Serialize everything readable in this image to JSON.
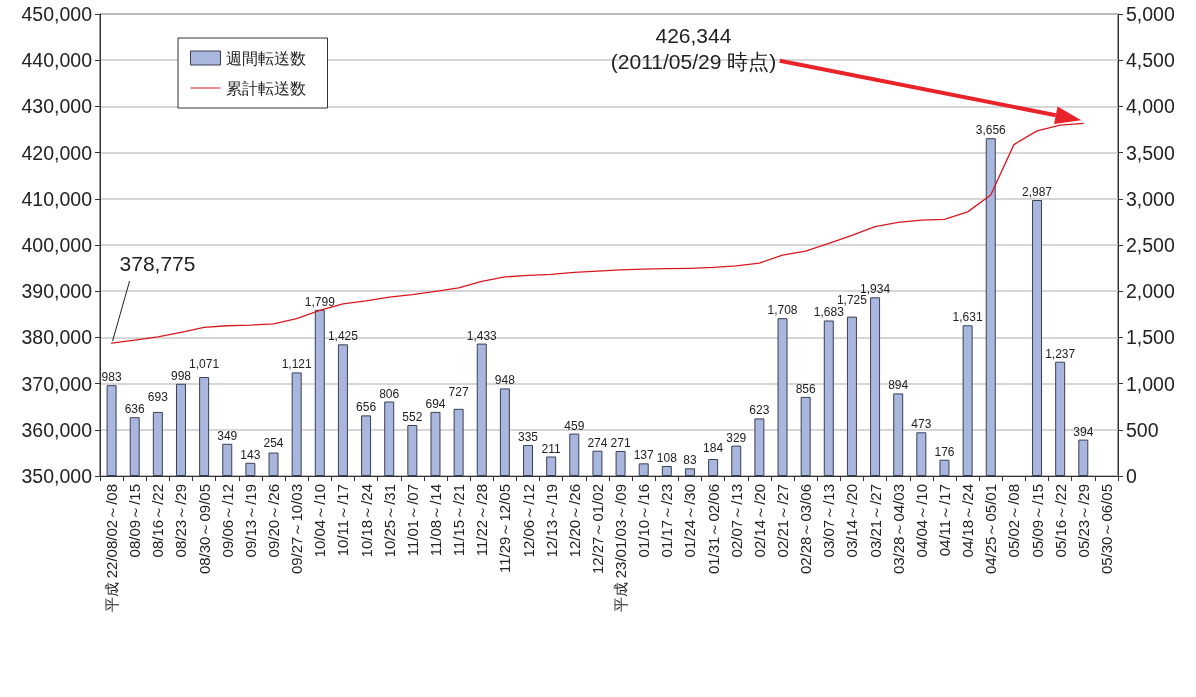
{
  "chart_data": {
    "type": "bar",
    "categories": [
      "平成 22/08/02～/08",
      "08/09～/15",
      "08/16～/22",
      "08/23～/29",
      "08/30～09/05",
      "09/06～/12",
      "09/13～/19",
      "09/20～/26",
      "09/27～10/03",
      "10/04～/10",
      "10/11～/17",
      "10/18～/24",
      "10/25～/31",
      "11/01～/07",
      "11/08～/14",
      "11/15～/21",
      "11/22～/28",
      "11/29～12/05",
      "12/06～/12",
      "12/13～/19",
      "12/20～/26",
      "12/27～01/02",
      "平成 23/01/03～/09",
      "01/10～/16",
      "01/17～/23",
      "01/24～/30",
      "01/31～02/06",
      "02/07～/13",
      "02/14～/20",
      "02/21～/27",
      "02/28～03/06",
      "03/07～/13",
      "03/14～/20",
      "03/21～/27",
      "03/28～04/03",
      "04/04～/10",
      "04/11～/17",
      "04/18～/24",
      "04/25～05/01",
      "05/02～/08",
      "05/09～/15",
      "05/16～/22",
      "05/23～/29",
      "05/30～06/05"
    ],
    "series": [
      {
        "name": "週間転送数",
        "axis": "y2",
        "color": "#a9b6de",
        "values": [
          983,
          636,
          693,
          998,
          1071,
          349,
          143,
          254,
          1121,
          1799,
          1425,
          656,
          806,
          552,
          694,
          727,
          1433,
          948,
          335,
          211,
          459,
          274,
          271,
          137,
          108,
          83,
          184,
          329,
          623,
          1708,
          856,
          1683,
          1725,
          1934,
          894,
          473,
          176,
          1631,
          3656,
          null,
          2987,
          1237,
          394,
          null
        ],
        "value_labels": [
          "983",
          "636",
          "693",
          "998",
          "1,071",
          "349",
          "143",
          "254",
          "1,121",
          "1,799",
          "1,425",
          "656",
          "806",
          "552",
          "694",
          "727",
          "1,433",
          "948",
          "335",
          "211",
          "459",
          "274",
          "271",
          "137",
          "108",
          "83",
          "184",
          "329",
          "623",
          "1,708",
          "856",
          "1,683",
          "1,725",
          "1,934",
          "894",
          "473",
          "176",
          "1,631",
          "3,656",
          null,
          "2,987",
          "1,237",
          "394",
          null
        ]
      },
      {
        "name": "累計転送数",
        "type": "line",
        "color": "#d71920",
        "values": [
          378775,
          379411,
          380104,
          381102,
          382173,
          382522,
          382665,
          382919,
          384040,
          385839,
          387264,
          387920,
          388726,
          389278,
          389972,
          390699,
          392132,
          393080,
          393415,
          393626,
          394085,
          394359,
          394630,
          394767,
          394875,
          394958,
          395142,
          395471,
          396094,
          397802,
          398658,
          400341,
          402066,
          404000,
          404894,
          405367,
          405543,
          407174,
          410830,
          421726,
          424713,
          425950,
          426344,
          null
        ]
      }
    ],
    "ylim": [
      350000,
      450000
    ],
    "yticks": [
      {
        "value": 350000,
        "label": "350,000"
      },
      {
        "value": 360000,
        "label": "360,000"
      },
      {
        "value": 370000,
        "label": "370,000"
      },
      {
        "value": 380000,
        "label": "380,000"
      },
      {
        "value": 390000,
        "label": "390,000"
      },
      {
        "value": 400000,
        "label": "400,000"
      },
      {
        "value": 410000,
        "label": "410,000"
      },
      {
        "value": 420000,
        "label": "420,000"
      },
      {
        "value": 430000,
        "label": "430,000"
      },
      {
        "value": 440000,
        "label": "440,000"
      },
      {
        "value": 450000,
        "label": "450,000"
      }
    ],
    "y2lim": [
      0,
      5000
    ],
    "y2ticks": [
      0,
      500,
      {
        "value": 1000,
        "label": "1,000"
      },
      {
        "value": 1500,
        "label": "1,500"
      },
      {
        "value": 2000,
        "label": "2,000"
      },
      {
        "value": 2500,
        "label": "2,500"
      },
      {
        "value": 3000,
        "label": "3,000"
      },
      {
        "value": 3500,
        "label": "3,500"
      },
      {
        "value": 4000,
        "label": "4,000"
      },
      {
        "value": 4500,
        "label": "4,500"
      },
      {
        "value": 5000,
        "label": "5,000"
      }
    ],
    "grid": "y",
    "legend": "top left",
    "marker": "none",
    "annotations": [
      {
        "text": "378,775",
        "x": "平成 22/08/02～/08",
        "y": 378775
      },
      "426,344\n(2011/05/29 時点)"
    ]
  }
}
